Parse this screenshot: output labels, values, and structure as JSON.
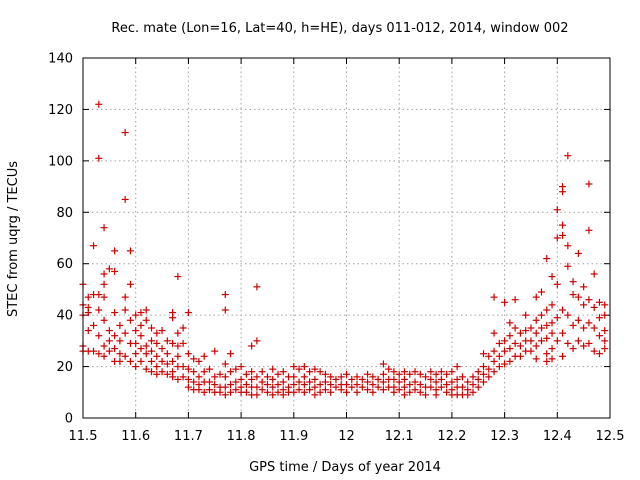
{
  "chart_data": {
    "type": "scatter",
    "title": "Rec. mate (Lon=16, Lat=40, h=HE), days 011-012, 2014, window 002",
    "xlabel": "GPS time / Days of year 2014",
    "ylabel": "STEC from uqrg / TECUs",
    "xlim": [
      11.5,
      12.5
    ],
    "ylim": [
      0,
      140
    ],
    "x_ticks": [
      "11.5",
      "11.6",
      "11.7",
      "11.8",
      "11.9",
      "12",
      "12.1",
      "12.2",
      "12.3",
      "12.4",
      "12.5"
    ],
    "y_ticks": [
      "0",
      "20",
      "40",
      "60",
      "80",
      "100",
      "120",
      "140"
    ],
    "grid": true,
    "marker": "plus",
    "color": "#cc0000",
    "points": [
      [
        11.5,
        52
      ],
      [
        11.5,
        44
      ],
      [
        11.5,
        40
      ],
      [
        11.5,
        28
      ],
      [
        11.5,
        26
      ],
      [
        11.51,
        47
      ],
      [
        11.51,
        43
      ],
      [
        11.51,
        41
      ],
      [
        11.51,
        34
      ],
      [
        11.51,
        26
      ],
      [
        11.52,
        67
      ],
      [
        11.52,
        48
      ],
      [
        11.52,
        36
      ],
      [
        11.52,
        26
      ],
      [
        11.53,
        122
      ],
      [
        11.53,
        101
      ],
      [
        11.53,
        48
      ],
      [
        11.53,
        42
      ],
      [
        11.53,
        32
      ],
      [
        11.53,
        25
      ],
      [
        11.54,
        74
      ],
      [
        11.54,
        56
      ],
      [
        11.54,
        52
      ],
      [
        11.54,
        47
      ],
      [
        11.54,
        38
      ],
      [
        11.54,
        28
      ],
      [
        11.54,
        24
      ],
      [
        11.55,
        58
      ],
      [
        11.55,
        34
      ],
      [
        11.55,
        30
      ],
      [
        11.55,
        26
      ],
      [
        11.56,
        65
      ],
      [
        11.56,
        57
      ],
      [
        11.56,
        41
      ],
      [
        11.56,
        32
      ],
      [
        11.56,
        27
      ],
      [
        11.56,
        22
      ],
      [
        11.57,
        36
      ],
      [
        11.57,
        30
      ],
      [
        11.57,
        25
      ],
      [
        11.57,
        22
      ],
      [
        11.58,
        111
      ],
      [
        11.58,
        85
      ],
      [
        11.58,
        47
      ],
      [
        11.58,
        42
      ],
      [
        11.58,
        33
      ],
      [
        11.58,
        24
      ],
      [
        11.59,
        65
      ],
      [
        11.59,
        52
      ],
      [
        11.59,
        38
      ],
      [
        11.59,
        29
      ],
      [
        11.59,
        22
      ],
      [
        11.6,
        40
      ],
      [
        11.6,
        34
      ],
      [
        11.6,
        29
      ],
      [
        11.6,
        25
      ],
      [
        11.6,
        20
      ],
      [
        11.61,
        41
      ],
      [
        11.61,
        36
      ],
      [
        11.61,
        32
      ],
      [
        11.61,
        27
      ],
      [
        11.61,
        22
      ],
      [
        11.62,
        42
      ],
      [
        11.62,
        38
      ],
      [
        11.62,
        28
      ],
      [
        11.62,
        25
      ],
      [
        11.62,
        19
      ],
      [
        11.63,
        35
      ],
      [
        11.63,
        30
      ],
      [
        11.63,
        26
      ],
      [
        11.63,
        22
      ],
      [
        11.63,
        18
      ],
      [
        11.64,
        33
      ],
      [
        11.64,
        29
      ],
      [
        11.64,
        24
      ],
      [
        11.64,
        20
      ],
      [
        11.64,
        17
      ],
      [
        11.65,
        34
      ],
      [
        11.65,
        27
      ],
      [
        11.65,
        22
      ],
      [
        11.65,
        18
      ],
      [
        11.66,
        30
      ],
      [
        11.66,
        25
      ],
      [
        11.66,
        21
      ],
      [
        11.66,
        17
      ],
      [
        11.67,
        41
      ],
      [
        11.67,
        39
      ],
      [
        11.67,
        29
      ],
      [
        11.67,
        22
      ],
      [
        11.67,
        18
      ],
      [
        11.67,
        16
      ],
      [
        11.68,
        55
      ],
      [
        11.68,
        33
      ],
      [
        11.68,
        28
      ],
      [
        11.68,
        24
      ],
      [
        11.68,
        20
      ],
      [
        11.68,
        15
      ],
      [
        11.69,
        35
      ],
      [
        11.69,
        29
      ],
      [
        11.69,
        20
      ],
      [
        11.69,
        16
      ],
      [
        11.7,
        41
      ],
      [
        11.7,
        25
      ],
      [
        11.7,
        19
      ],
      [
        11.7,
        15
      ],
      [
        11.7,
        12
      ],
      [
        11.71,
        23
      ],
      [
        11.71,
        18
      ],
      [
        11.71,
        14
      ],
      [
        11.71,
        11
      ],
      [
        11.72,
        22
      ],
      [
        11.72,
        16
      ],
      [
        11.72,
        13
      ],
      [
        11.72,
        11
      ],
      [
        11.73,
        24
      ],
      [
        11.73,
        18
      ],
      [
        11.73,
        14
      ],
      [
        11.73,
        10
      ],
      [
        11.74,
        19
      ],
      [
        11.74,
        14
      ],
      [
        11.74,
        11
      ],
      [
        11.75,
        26
      ],
      [
        11.75,
        16
      ],
      [
        11.75,
        13
      ],
      [
        11.75,
        10
      ],
      [
        11.76,
        17
      ],
      [
        11.76,
        12
      ],
      [
        11.76,
        10
      ],
      [
        11.77,
        48
      ],
      [
        11.77,
        42
      ],
      [
        11.77,
        21
      ],
      [
        11.77,
        16
      ],
      [
        11.77,
        12
      ],
      [
        11.77,
        9
      ],
      [
        11.78,
        25
      ],
      [
        11.78,
        18
      ],
      [
        11.78,
        13
      ],
      [
        11.78,
        10
      ],
      [
        11.79,
        19
      ],
      [
        11.79,
        14
      ],
      [
        11.79,
        11
      ],
      [
        11.8,
        20
      ],
      [
        11.8,
        15
      ],
      [
        11.8,
        12
      ],
      [
        11.8,
        10
      ],
      [
        11.81,
        17
      ],
      [
        11.81,
        13
      ],
      [
        11.81,
        10
      ],
      [
        11.82,
        28
      ],
      [
        11.82,
        18
      ],
      [
        11.82,
        15
      ],
      [
        11.82,
        12
      ],
      [
        11.82,
        9
      ],
      [
        11.83,
        51
      ],
      [
        11.83,
        30
      ],
      [
        11.83,
        16
      ],
      [
        11.83,
        12
      ],
      [
        11.83,
        9
      ],
      [
        11.84,
        18
      ],
      [
        11.84,
        14
      ],
      [
        11.84,
        11
      ],
      [
        11.85,
        16
      ],
      [
        11.85,
        13
      ],
      [
        11.85,
        10
      ],
      [
        11.86,
        19
      ],
      [
        11.86,
        15
      ],
      [
        11.86,
        12
      ],
      [
        11.86,
        9
      ],
      [
        11.87,
        17
      ],
      [
        11.87,
        13
      ],
      [
        11.87,
        10
      ],
      [
        11.88,
        18
      ],
      [
        11.88,
        14
      ],
      [
        11.88,
        11
      ],
      [
        11.88,
        9
      ],
      [
        11.89,
        16
      ],
      [
        11.89,
        12
      ],
      [
        11.89,
        10
      ],
      [
        11.9,
        20
      ],
      [
        11.9,
        16
      ],
      [
        11.9,
        13
      ],
      [
        11.9,
        10
      ],
      [
        11.91,
        19
      ],
      [
        11.91,
        14
      ],
      [
        11.91,
        11
      ],
      [
        11.92,
        20
      ],
      [
        11.92,
        16
      ],
      [
        11.92,
        13
      ],
      [
        11.92,
        10
      ],
      [
        11.93,
        18
      ],
      [
        11.93,
        14
      ],
      [
        11.93,
        11
      ],
      [
        11.94,
        19
      ],
      [
        11.94,
        15
      ],
      [
        11.94,
        12
      ],
      [
        11.94,
        9
      ],
      [
        11.95,
        18
      ],
      [
        11.95,
        13
      ],
      [
        11.95,
        10
      ],
      [
        11.96,
        17
      ],
      [
        11.96,
        14
      ],
      [
        11.96,
        11
      ],
      [
        11.97,
        16
      ],
      [
        11.97,
        13
      ],
      [
        11.97,
        10
      ],
      [
        11.98,
        15
      ],
      [
        11.98,
        12
      ],
      [
        11.99,
        16
      ],
      [
        11.99,
        13
      ],
      [
        11.99,
        11
      ],
      [
        12.0,
        17
      ],
      [
        12.0,
        13
      ],
      [
        12.0,
        10
      ],
      [
        12.01,
        15
      ],
      [
        12.01,
        12
      ],
      [
        12.02,
        16
      ],
      [
        12.02,
        13
      ],
      [
        12.02,
        10
      ],
      [
        12.03,
        15
      ],
      [
        12.03,
        12
      ],
      [
        12.04,
        17
      ],
      [
        12.04,
        14
      ],
      [
        12.04,
        11
      ],
      [
        12.05,
        16
      ],
      [
        12.05,
        13
      ],
      [
        12.05,
        10
      ],
      [
        12.06,
        15
      ],
      [
        12.06,
        12
      ],
      [
        12.07,
        21
      ],
      [
        12.07,
        17
      ],
      [
        12.07,
        14
      ],
      [
        12.07,
        11
      ],
      [
        12.08,
        19
      ],
      [
        12.08,
        15
      ],
      [
        12.08,
        12
      ],
      [
        12.09,
        18
      ],
      [
        12.09,
        15
      ],
      [
        12.09,
        12
      ],
      [
        12.09,
        10
      ],
      [
        12.1,
        17
      ],
      [
        12.1,
        14
      ],
      [
        12.1,
        11
      ],
      [
        12.11,
        18
      ],
      [
        12.11,
        15
      ],
      [
        12.11,
        12
      ],
      [
        12.11,
        9
      ],
      [
        12.12,
        17
      ],
      [
        12.12,
        13
      ],
      [
        12.12,
        10
      ],
      [
        12.13,
        18
      ],
      [
        12.13,
        14
      ],
      [
        12.13,
        11
      ],
      [
        12.14,
        17
      ],
      [
        12.14,
        13
      ],
      [
        12.14,
        10
      ],
      [
        12.15,
        16
      ],
      [
        12.15,
        12
      ],
      [
        12.15,
        9
      ],
      [
        12.16,
        18
      ],
      [
        12.16,
        15
      ],
      [
        12.16,
        12
      ],
      [
        12.17,
        17
      ],
      [
        12.17,
        14
      ],
      [
        12.17,
        11
      ],
      [
        12.17,
        9
      ],
      [
        12.18,
        18
      ],
      [
        12.18,
        15
      ],
      [
        12.18,
        12
      ],
      [
        12.19,
        17
      ],
      [
        12.19,
        13
      ],
      [
        12.19,
        10
      ],
      [
        12.2,
        18
      ],
      [
        12.2,
        14
      ],
      [
        12.2,
        11
      ],
      [
        12.2,
        9
      ],
      [
        12.21,
        20
      ],
      [
        12.21,
        15
      ],
      [
        12.21,
        12
      ],
      [
        12.21,
        9
      ],
      [
        12.22,
        16
      ],
      [
        12.22,
        12
      ],
      [
        12.22,
        9
      ],
      [
        12.23,
        14
      ],
      [
        12.23,
        11
      ],
      [
        12.23,
        9
      ],
      [
        12.24,
        16
      ],
      [
        12.24,
        13
      ],
      [
        12.24,
        10
      ],
      [
        12.25,
        18
      ],
      [
        12.25,
        15
      ],
      [
        12.25,
        12
      ],
      [
        12.26,
        25
      ],
      [
        12.26,
        20
      ],
      [
        12.26,
        17
      ],
      [
        12.26,
        14
      ],
      [
        12.27,
        24
      ],
      [
        12.27,
        19
      ],
      [
        12.27,
        16
      ],
      [
        12.28,
        47
      ],
      [
        12.28,
        33
      ],
      [
        12.28,
        26
      ],
      [
        12.28,
        22
      ],
      [
        12.28,
        18
      ],
      [
        12.29,
        29
      ],
      [
        12.29,
        24
      ],
      [
        12.29,
        20
      ],
      [
        12.3,
        45
      ],
      [
        12.3,
        30
      ],
      [
        12.3,
        26
      ],
      [
        12.3,
        21
      ],
      [
        12.31,
        37
      ],
      [
        12.31,
        32
      ],
      [
        12.31,
        27
      ],
      [
        12.31,
        22
      ],
      [
        12.32,
        46
      ],
      [
        12.32,
        35
      ],
      [
        12.32,
        29
      ],
      [
        12.32,
        24
      ],
      [
        12.33,
        33
      ],
      [
        12.33,
        28
      ],
      [
        12.33,
        24
      ],
      [
        12.34,
        40
      ],
      [
        12.34,
        34
      ],
      [
        12.34,
        30
      ],
      [
        12.34,
        26
      ],
      [
        12.35,
        35
      ],
      [
        12.35,
        30
      ],
      [
        12.35,
        26
      ],
      [
        12.36,
        47
      ],
      [
        12.36,
        38
      ],
      [
        12.36,
        33
      ],
      [
        12.36,
        28
      ],
      [
        12.36,
        23
      ],
      [
        12.37,
        49
      ],
      [
        12.37,
        40
      ],
      [
        12.37,
        35
      ],
      [
        12.37,
        30
      ],
      [
        12.38,
        62
      ],
      [
        12.38,
        42
      ],
      [
        12.38,
        36
      ],
      [
        12.38,
        31
      ],
      [
        12.38,
        25
      ],
      [
        12.38,
        22
      ],
      [
        12.39,
        55
      ],
      [
        12.39,
        44
      ],
      [
        12.39,
        37
      ],
      [
        12.39,
        33
      ],
      [
        12.39,
        27
      ],
      [
        12.39,
        23
      ],
      [
        12.4,
        81
      ],
      [
        12.4,
        70
      ],
      [
        12.4,
        52
      ],
      [
        12.4,
        39
      ],
      [
        12.4,
        30
      ],
      [
        12.41,
        90
      ],
      [
        12.41,
        88
      ],
      [
        12.41,
        75
      ],
      [
        12.41,
        71
      ],
      [
        12.41,
        42
      ],
      [
        12.41,
        33
      ],
      [
        12.41,
        24
      ],
      [
        12.42,
        102
      ],
      [
        12.42,
        67
      ],
      [
        12.42,
        59
      ],
      [
        12.42,
        40
      ],
      [
        12.42,
        29
      ],
      [
        12.43,
        53
      ],
      [
        12.43,
        48
      ],
      [
        12.43,
        36
      ],
      [
        12.43,
        27
      ],
      [
        12.44,
        64
      ],
      [
        12.44,
        47
      ],
      [
        12.44,
        38
      ],
      [
        12.44,
        30
      ],
      [
        12.45,
        51
      ],
      [
        12.45,
        44
      ],
      [
        12.45,
        35
      ],
      [
        12.45,
        28
      ],
      [
        12.46,
        91
      ],
      [
        12.46,
        73
      ],
      [
        12.46,
        46
      ],
      [
        12.46,
        37
      ],
      [
        12.46,
        29
      ],
      [
        12.47,
        56
      ],
      [
        12.47,
        43
      ],
      [
        12.47,
        35
      ],
      [
        12.47,
        26
      ],
      [
        12.48,
        45
      ],
      [
        12.48,
        39
      ],
      [
        12.48,
        32
      ],
      [
        12.48,
        25
      ],
      [
        12.49,
        44
      ],
      [
        12.49,
        40
      ],
      [
        12.49,
        34
      ],
      [
        12.49,
        30
      ],
      [
        12.49,
        27
      ]
    ]
  }
}
